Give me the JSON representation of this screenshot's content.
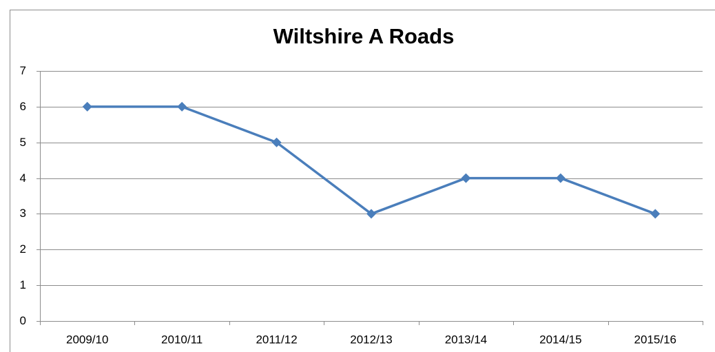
{
  "chart_data": {
    "type": "line",
    "title": "Wiltshire A Roads",
    "categories": [
      "2009/10",
      "2010/11",
      "2011/12",
      "2012/13",
      "2013/14",
      "2014/15",
      "2015/16"
    ],
    "series": [
      {
        "name": "Wiltshire A Roads",
        "color": "#4a7ebb",
        "values": [
          6,
          6,
          5,
          3,
          4,
          4,
          3
        ]
      }
    ],
    "ylim": [
      0,
      7
    ],
    "yticks": [
      0,
      1,
      2,
      3,
      4,
      5,
      6,
      7
    ],
    "grid": true
  }
}
